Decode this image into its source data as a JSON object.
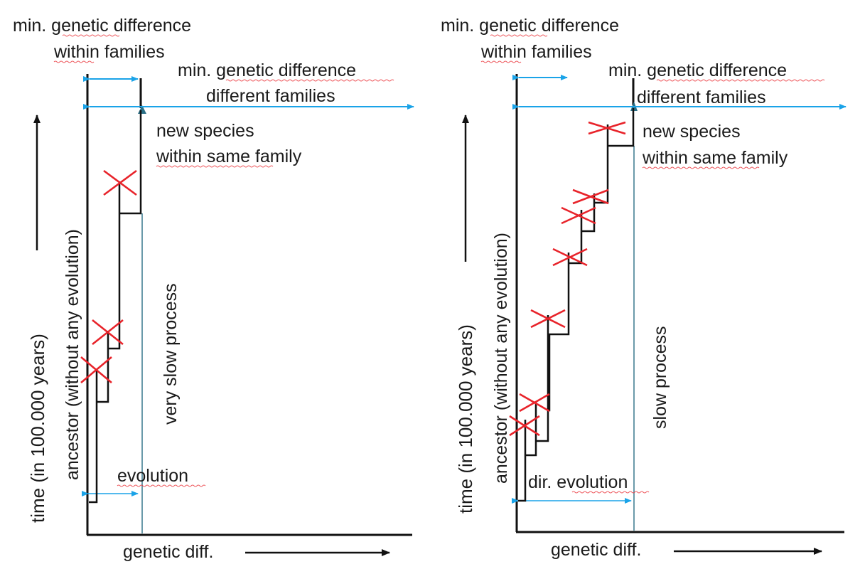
{
  "left_panel": {
    "label_min_within": "min. genetic difference",
    "label_within_families": "within families",
    "label_min_between": "min. genetic difference",
    "label_different_families": "different families",
    "label_new_species": "new species",
    "label_within_same_family": "within same family",
    "label_slow": "very slow process",
    "label_evolution": "evolution",
    "label_ancestor": "ancestor (without any evolution)",
    "label_time": "time (in 100.000 years)",
    "label_genetic_diff": "genetic diff."
  },
  "right_panel": {
    "label_min_within": "min. genetic difference",
    "label_within_families": "within families",
    "label_min_between": "min. genetic difference",
    "label_different_families": "different families",
    "label_new_species": "new species",
    "label_within_same_family": "within same family",
    "label_slow": "slow process",
    "label_evolution": "dir. evolution",
    "label_ancestor": "ancestor (without any evolution)",
    "label_time": "time (in 100.000 years)",
    "label_genetic_diff": "genetic diff."
  },
  "colors": {
    "lines": "#111111",
    "arrows": "#1aa3e8",
    "threshold": "#2a6f86",
    "extinct_marks": "#e8232a"
  }
}
